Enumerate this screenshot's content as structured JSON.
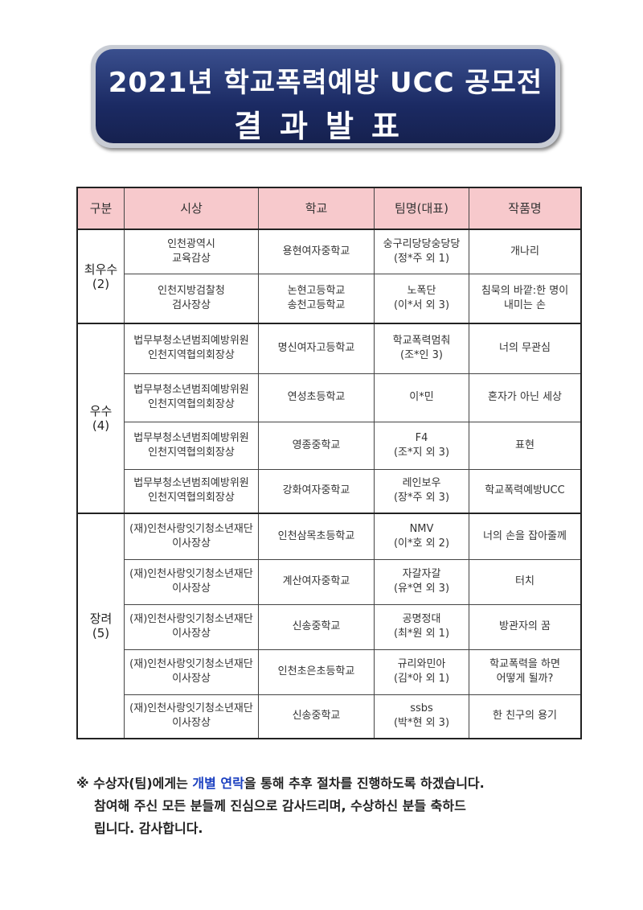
{
  "title": {
    "line1": "2021년 학교폭력예방 UCC 공모전",
    "line2": "결과발표"
  },
  "table": {
    "headers": [
      "구분",
      "시상",
      "학교",
      "팀명(대표)",
      "작품명"
    ],
    "groups": [
      {
        "category": "최우수",
        "count": "(2)",
        "rows": [
          {
            "award": [
              "인천광역시",
              "교육감상"
            ],
            "school": [
              "용현여자중학교"
            ],
            "team": [
              "숭구리당당숭당당",
              "(정*주 외 1)"
            ],
            "title": [
              "개나리"
            ]
          },
          {
            "award": [
              "인천지방검찰청",
              "검사장상"
            ],
            "school": [
              "논현고등학교",
              "송천고등학교"
            ],
            "team": [
              "노폭단",
              "(이*서 외 3)"
            ],
            "title": [
              "침묵의 바깥:한 명이",
              "내미는 손"
            ]
          }
        ]
      },
      {
        "category": "우수",
        "count": "(4)",
        "rows": [
          {
            "award": [
              "법무부청소년범죄예방위원",
              "인천지역협의회장상"
            ],
            "school": [
              "명신여자고등학교"
            ],
            "team": [
              "학교폭력멈춰",
              "(조*인 3)"
            ],
            "title": [
              "너의 무관심"
            ]
          },
          {
            "award": [
              "법무부청소년범죄예방위원",
              "인천지역협의회장상"
            ],
            "school": [
              "연성초등학교"
            ],
            "team": [
              "이*민"
            ],
            "title": [
              "혼자가 아닌 세상"
            ]
          },
          {
            "award": [
              "법무부청소년범죄예방위원",
              "인천지역협의회장상"
            ],
            "school": [
              "영종중학교"
            ],
            "team": [
              "F4",
              "(조*지 외 3)"
            ],
            "title": [
              "표현"
            ]
          },
          {
            "award": [
              "법무부청소년범죄예방위원",
              "인천지역협의회장상"
            ],
            "school": [
              "강화여자중학교"
            ],
            "team": [
              "레인보우",
              "(장*주 외 3)"
            ],
            "title": [
              "학교폭력예방UCC"
            ]
          }
        ]
      },
      {
        "category": "장려",
        "count": "(5)",
        "rows": [
          {
            "award": [
              "(재)인천사랑잇기청소년재단",
              "이사장상"
            ],
            "school": [
              "인천삼목초등학교"
            ],
            "team": [
              "NMV",
              "(이*호 외 2)"
            ],
            "title": [
              "너의 손을 잡아줄께"
            ]
          },
          {
            "award": [
              "(재)인천사랑잇기청소년재단",
              "이사장상"
            ],
            "school": [
              "계산여자중학교"
            ],
            "team": [
              "자갈자갈",
              "(유*연 외 3)"
            ],
            "title": [
              "터치"
            ]
          },
          {
            "award": [
              "(재)인천사랑잇기청소년재단",
              "이사장상"
            ],
            "school": [
              "신송중학교"
            ],
            "team": [
              "공명정대",
              "(최*원 외 1)"
            ],
            "title": [
              "방관자의 꿈"
            ]
          },
          {
            "award": [
              "(재)인천사랑잇기청소년재단",
              "이사장상"
            ],
            "school": [
              "인천초은초등학교"
            ],
            "team": [
              "규리와민아",
              "(김*아 외 1)"
            ],
            "title": [
              "학교폭력을 하면",
              "어떻게 될까?"
            ]
          },
          {
            "award": [
              "(재)인천사랑잇기청소년재단",
              "이사장상"
            ],
            "school": [
              "신송중학교"
            ],
            "team": [
              "ssbs",
              "(박*현 외 3)"
            ],
            "title": [
              "한 친구의 용기"
            ]
          }
        ]
      }
    ]
  },
  "note": {
    "prefix": "※ 수상자(팀)에게는 ",
    "highlight": "개별 연락",
    "suffix": "을 통해 추후 절차를 진행하도록 하겠습니다.",
    "line2": "참여해 주신 모든 분들께 진심으로 감사드리며, 수상하신 분들 축하드",
    "line3": "립니다. 감사합니다."
  },
  "colors": {
    "banner": "#1b2a63",
    "header_bg": "#f7c9cc",
    "highlight": "#1a3fc0"
  }
}
